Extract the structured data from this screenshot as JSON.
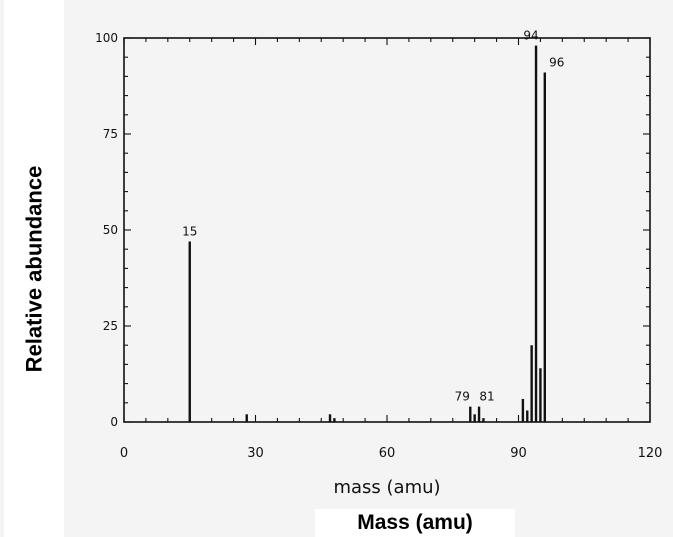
{
  "chart_data": {
    "type": "bar",
    "title": "",
    "xlabel": "mass (amu)",
    "ylabel": "",
    "overlay_xlabel": "Mass (amu)",
    "overlay_ylabel": "Relative abundance",
    "xlim": [
      0,
      120
    ],
    "ylim": [
      0,
      100
    ],
    "xticks": [
      "0",
      "30",
      "60",
      "90",
      "120"
    ],
    "yticks": [
      "0",
      "25",
      "50",
      "75",
      "100"
    ],
    "x": [
      15,
      28,
      47,
      48,
      79,
      80,
      81,
      82,
      91,
      92,
      93,
      94,
      95,
      96
    ],
    "values": [
      47,
      2,
      2,
      1,
      4,
      2,
      4,
      1,
      6,
      3,
      20,
      98,
      14,
      91
    ],
    "peak_labels": [
      {
        "x": 15,
        "text": "15"
      },
      {
        "x": 79,
        "text": "79"
      },
      {
        "x": 81,
        "text": "81"
      },
      {
        "x": 94,
        "text": "94"
      },
      {
        "x": 96,
        "text": "96"
      }
    ],
    "grid": false,
    "colors": {
      "line": "#111111",
      "background": "#f4f4f4"
    }
  }
}
